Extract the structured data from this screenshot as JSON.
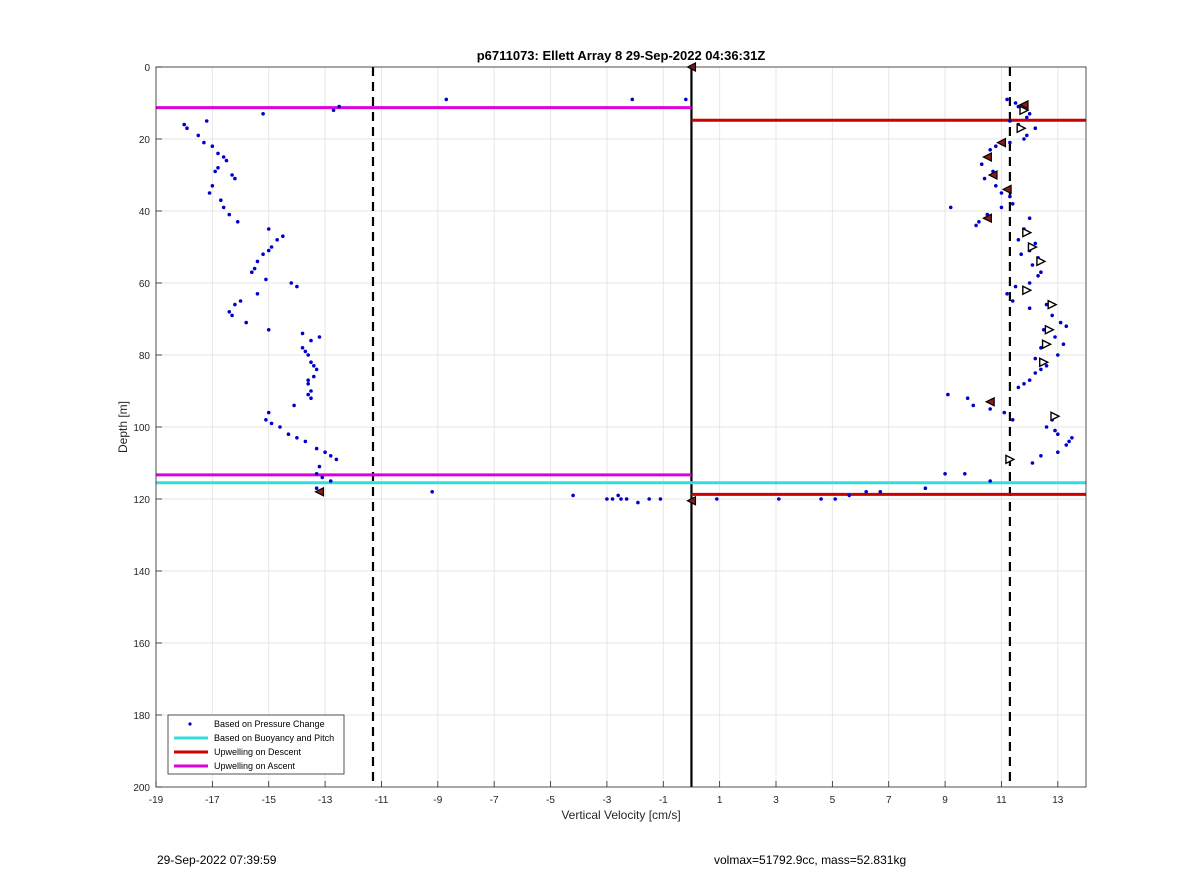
{
  "chart_data": {
    "type": "scatter",
    "title": "p6711073: Ellett Array 8 29-Sep-2022 04:36:31Z",
    "xlabel": "Vertical Velocity [cm/s]",
    "ylabel": "Depth [m]",
    "xlim": [
      -19,
      14
    ],
    "ylim": [
      0,
      200
    ],
    "y_reversed": true,
    "xticks": [
      -19,
      -17,
      -15,
      -13,
      -11,
      -9,
      -7,
      -5,
      -3,
      -1,
      1,
      3,
      5,
      7,
      9,
      11,
      13
    ],
    "yticks": [
      0,
      20,
      40,
      60,
      80,
      100,
      120,
      140,
      160,
      180,
      200
    ],
    "grid": true,
    "legend_position": "bottom-left",
    "legend": [
      {
        "label": "Based on Pressure Change",
        "color": "#0000cc",
        "marker": "dot"
      },
      {
        "label": "Based on Buoyancy and Pitch",
        "color": "#33dddd",
        "marker": "line"
      },
      {
        "label": "Upwelling on Descent",
        "color": "#cc0000",
        "marker": "line"
      },
      {
        "label": "Upwelling on Ascent",
        "color": "#dd00dd",
        "marker": "line"
      }
    ],
    "vertical_lines": [
      {
        "x": -11.3,
        "style": "dashed",
        "color": "#000000"
      },
      {
        "x": 0.0,
        "style": "solid",
        "color": "#000000"
      },
      {
        "x": 11.3,
        "style": "dashed",
        "color": "#000000"
      }
    ],
    "series": [
      {
        "name": "Based on Pressure Change",
        "color": "#0000cc",
        "points": [
          [
            -18.0,
            16
          ],
          [
            -17.9,
            17
          ],
          [
            -17.5,
            19
          ],
          [
            -17.2,
            15
          ],
          [
            -17.3,
            21
          ],
          [
            -17.0,
            22
          ],
          [
            -16.8,
            24
          ],
          [
            -16.6,
            25
          ],
          [
            -16.5,
            26
          ],
          [
            -16.8,
            28
          ],
          [
            -16.9,
            29
          ],
          [
            -16.3,
            30
          ],
          [
            -16.2,
            31
          ],
          [
            -17.0,
            33
          ],
          [
            -17.1,
            35
          ],
          [
            -16.7,
            37
          ],
          [
            -16.6,
            39
          ],
          [
            -16.4,
            41
          ],
          [
            -16.1,
            43
          ],
          [
            -15.2,
            13
          ],
          [
            -15.0,
            45
          ],
          [
            -14.5,
            47
          ],
          [
            -14.7,
            48
          ],
          [
            -14.9,
            50
          ],
          [
            -15.0,
            51
          ],
          [
            -15.2,
            52
          ],
          [
            -15.4,
            54
          ],
          [
            -15.5,
            56
          ],
          [
            -15.6,
            57
          ],
          [
            -15.1,
            59
          ],
          [
            -14.2,
            60
          ],
          [
            -14.0,
            61
          ],
          [
            -15.4,
            63
          ],
          [
            -16.0,
            65
          ],
          [
            -16.2,
            66
          ],
          [
            -16.4,
            68
          ],
          [
            -16.3,
            69
          ],
          [
            -15.8,
            71
          ],
          [
            -15.0,
            73
          ],
          [
            -13.8,
            74
          ],
          [
            -13.2,
            75
          ],
          [
            -13.5,
            76
          ],
          [
            -13.8,
            78
          ],
          [
            -13.7,
            79
          ],
          [
            -13.6,
            80
          ],
          [
            -13.5,
            82
          ],
          [
            -13.4,
            83
          ],
          [
            -13.3,
            84
          ],
          [
            -13.4,
            86
          ],
          [
            -13.6,
            87
          ],
          [
            -13.6,
            88
          ],
          [
            -13.5,
            90
          ],
          [
            -13.6,
            91
          ],
          [
            -13.5,
            92
          ],
          [
            -14.1,
            94
          ],
          [
            -15.0,
            96
          ],
          [
            -15.1,
            98
          ],
          [
            -14.9,
            99
          ],
          [
            -14.6,
            100
          ],
          [
            -14.3,
            102
          ],
          [
            -14.0,
            103
          ],
          [
            -13.7,
            104
          ],
          [
            -13.3,
            106
          ],
          [
            -13.0,
            107
          ],
          [
            -12.8,
            108
          ],
          [
            -12.6,
            109
          ],
          [
            -13.2,
            111
          ],
          [
            -13.3,
            113
          ],
          [
            -13.1,
            114
          ],
          [
            -12.8,
            115
          ],
          [
            -13.3,
            117
          ],
          [
            -12.5,
            11
          ],
          [
            -12.7,
            12
          ],
          [
            -8.7,
            9
          ],
          [
            -2.1,
            9
          ],
          [
            -0.2,
            9
          ],
          [
            -9.2,
            118
          ],
          [
            -4.2,
            119
          ],
          [
            -3.0,
            120
          ],
          [
            -2.8,
            120
          ],
          [
            -2.6,
            119
          ],
          [
            -2.5,
            120
          ],
          [
            -2.3,
            120
          ],
          [
            -1.9,
            121
          ],
          [
            -1.5,
            120
          ],
          [
            -1.1,
            120
          ],
          [
            0.9,
            120
          ],
          [
            3.1,
            120
          ],
          [
            4.6,
            120
          ],
          [
            5.1,
            120
          ],
          [
            5.6,
            119
          ],
          [
            6.2,
            118
          ],
          [
            6.7,
            118
          ],
          [
            8.3,
            117
          ],
          [
            9.0,
            113
          ],
          [
            9.7,
            113
          ],
          [
            10.6,
            115
          ],
          [
            11.2,
            9
          ],
          [
            11.5,
            10
          ],
          [
            11.6,
            11
          ],
          [
            11.7,
            12
          ],
          [
            12.0,
            13
          ],
          [
            11.9,
            14
          ],
          [
            11.3,
            15
          ],
          [
            11.6,
            16
          ],
          [
            12.2,
            17
          ],
          [
            11.9,
            19
          ],
          [
            11.8,
            20
          ],
          [
            11.3,
            21
          ],
          [
            10.8,
            22
          ],
          [
            10.6,
            23
          ],
          [
            10.5,
            25
          ],
          [
            10.3,
            27
          ],
          [
            10.7,
            29
          ],
          [
            10.4,
            31
          ],
          [
            10.8,
            33
          ],
          [
            11.0,
            35
          ],
          [
            11.3,
            36
          ],
          [
            11.4,
            38
          ],
          [
            11.0,
            39
          ],
          [
            9.2,
            39
          ],
          [
            10.5,
            41
          ],
          [
            10.2,
            43
          ],
          [
            10.1,
            44
          ],
          [
            12.0,
            42
          ],
          [
            11.8,
            45
          ],
          [
            11.6,
            48
          ],
          [
            12.2,
            49
          ],
          [
            12.0,
            51
          ],
          [
            11.7,
            52
          ],
          [
            12.3,
            53
          ],
          [
            12.1,
            55
          ],
          [
            12.4,
            57
          ],
          [
            12.3,
            58
          ],
          [
            12.0,
            60
          ],
          [
            11.5,
            61
          ],
          [
            11.2,
            63
          ],
          [
            11.4,
            65
          ],
          [
            12.6,
            66
          ],
          [
            12.0,
            67
          ],
          [
            12.8,
            69
          ],
          [
            13.1,
            71
          ],
          [
            13.3,
            72
          ],
          [
            12.5,
            73
          ],
          [
            12.9,
            75
          ],
          [
            13.2,
            77
          ],
          [
            12.4,
            78
          ],
          [
            13.0,
            80
          ],
          [
            12.2,
            81
          ],
          [
            12.6,
            83
          ],
          [
            12.4,
            84
          ],
          [
            12.2,
            85
          ],
          [
            12.0,
            87
          ],
          [
            11.8,
            88
          ],
          [
            11.6,
            89
          ],
          [
            9.1,
            91
          ],
          [
            9.8,
            92
          ],
          [
            10.0,
            94
          ],
          [
            10.6,
            95
          ],
          [
            11.1,
            96
          ],
          [
            11.4,
            98
          ],
          [
            12.8,
            98
          ],
          [
            12.6,
            100
          ],
          [
            12.9,
            101
          ],
          [
            13.0,
            102
          ],
          [
            13.5,
            103
          ],
          [
            13.4,
            104
          ],
          [
            13.3,
            105
          ],
          [
            13.0,
            107
          ],
          [
            12.4,
            108
          ],
          [
            12.1,
            110
          ]
        ]
      },
      {
        "name": "Based on Buoyancy and Pitch",
        "color": "#33dddd",
        "line": {
          "y": 115.5,
          "x_from": -19,
          "x_to": 14
        }
      },
      {
        "name": "Upwelling on Descent",
        "color": "#cc0000",
        "lines": [
          {
            "y": 14.8,
            "x_from": 0,
            "x_to": 14
          },
          {
            "y": 118.7,
            "x_from": 0,
            "x_to": 14
          }
        ]
      },
      {
        "name": "Upwelling on Ascent",
        "color": "#dd00dd",
        "lines": [
          {
            "y": 11.3,
            "x_from": -19,
            "x_to": 0
          },
          {
            "y": 113.3,
            "x_from": -19,
            "x_to": 0
          }
        ]
      },
      {
        "marker": "triangle-left-filled",
        "color": "#8b1a1a",
        "points": [
          [
            0.0,
            0
          ],
          [
            11.8,
            10.5
          ],
          [
            11.0,
            21
          ],
          [
            10.5,
            25
          ],
          [
            10.7,
            30
          ],
          [
            11.2,
            34
          ],
          [
            10.5,
            42
          ],
          [
            10.6,
            93
          ],
          [
            -13.2,
            118
          ],
          [
            0.0,
            120.5
          ]
        ]
      },
      {
        "marker": "triangle-right-open",
        "color": "#000000",
        "points": [
          [
            11.8,
            12
          ],
          [
            11.7,
            17
          ],
          [
            11.9,
            46
          ],
          [
            12.1,
            50
          ],
          [
            12.4,
            54
          ],
          [
            11.9,
            62
          ],
          [
            12.8,
            66
          ],
          [
            12.7,
            73
          ],
          [
            12.6,
            77
          ],
          [
            12.5,
            82
          ],
          [
            12.9,
            97
          ],
          [
            11.3,
            109
          ]
        ]
      }
    ]
  },
  "footer": {
    "timestamp": "29-Sep-2022 07:39:59",
    "info": "volmax=51792.9cc, mass=52.831kg"
  }
}
